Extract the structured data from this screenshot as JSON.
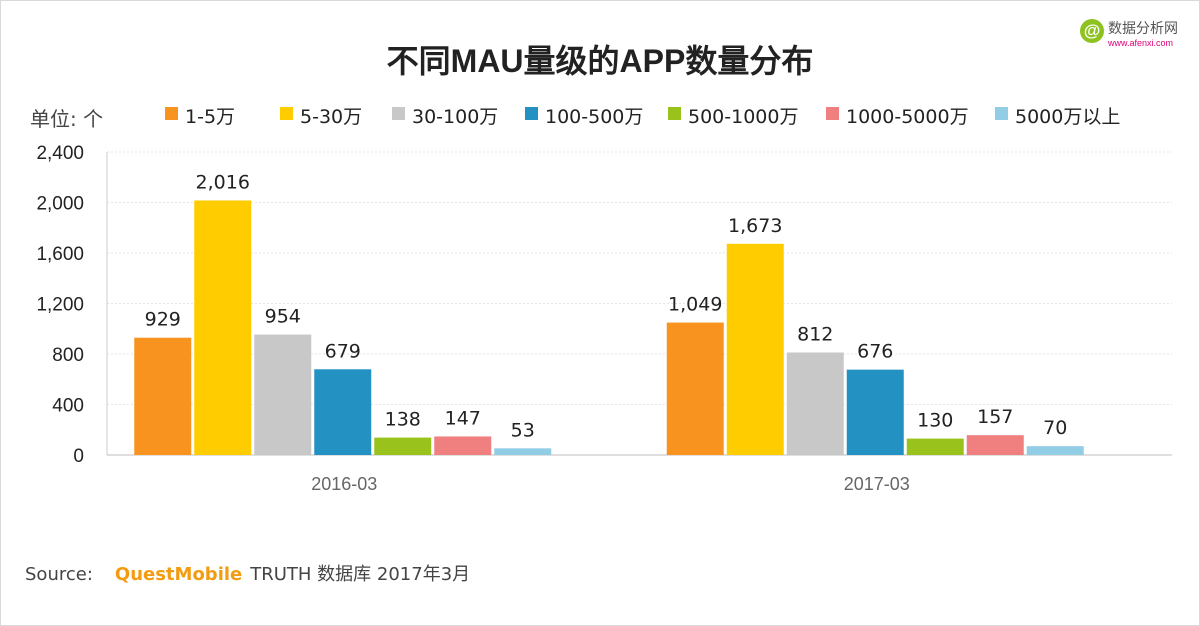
{
  "logo": {
    "glyph": "@",
    "name": "数据分析网",
    "url": "www.afenxi.com"
  },
  "unit_label": "单位: 个",
  "source": {
    "label": "Source:",
    "brand": "QuestMobile",
    "text": "TRUTH 数据库 2017年3月"
  },
  "chart_data": {
    "type": "bar",
    "title": "不同MAU量级的APP数量分布",
    "categories": [
      "2016-03",
      "2017-03"
    ],
    "series": [
      {
        "name": "1-5万",
        "color": "#f7931e",
        "values": [
          929,
          1049
        ],
        "labels": [
          "929",
          "1,049"
        ]
      },
      {
        "name": "5-30万",
        "color": "#ffcc00",
        "values": [
          2016,
          1673
        ],
        "labels": [
          "2,016",
          "1,673"
        ]
      },
      {
        "name": "30-100万",
        "color": "#c8c8c8",
        "values": [
          954,
          812
        ],
        "labels": [
          "954",
          "812"
        ]
      },
      {
        "name": "100-500万",
        "color": "#2491c3",
        "values": [
          679,
          676
        ],
        "labels": [
          "679",
          "676"
        ]
      },
      {
        "name": "500-1000万",
        "color": "#99c31c",
        "values": [
          138,
          130
        ],
        "labels": [
          "138",
          "130"
        ]
      },
      {
        "name": "1000-5000万",
        "color": "#f08080",
        "values": [
          147,
          157
        ],
        "labels": [
          "147",
          "157"
        ]
      },
      {
        "name": "5000万以上",
        "color": "#92cde6",
        "values": [
          53,
          70
        ],
        "labels": [
          "53",
          "70"
        ]
      }
    ],
    "ylim": [
      0,
      2400
    ],
    "yticks": [
      0,
      400,
      800,
      1200,
      1600,
      2000,
      2400
    ],
    "ytick_labels": [
      "0",
      "400",
      "800",
      "1,200",
      "1,600",
      "2,000",
      "2,400"
    ],
    "grid": true,
    "legend": "top",
    "xlabel": "",
    "ylabel": "单位: 个"
  }
}
